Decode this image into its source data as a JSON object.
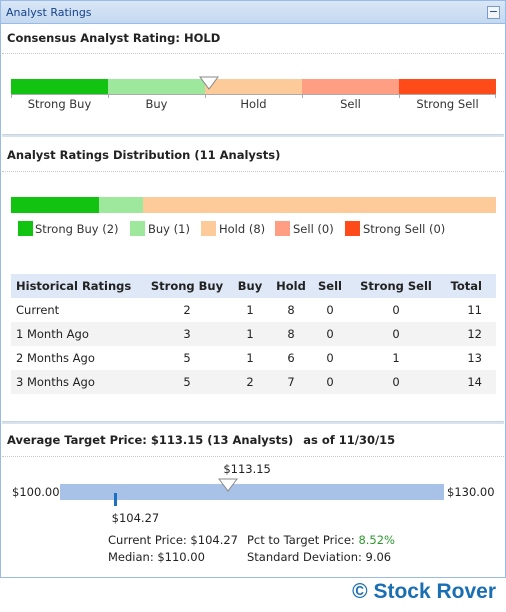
{
  "panel": {
    "title": "Analyst Ratings",
    "collapse_symbol": "−"
  },
  "consensus": {
    "label": "Consensus Analyst Rating:",
    "value": "HOLD",
    "scale": [
      "Strong Buy",
      "Buy",
      "Hold",
      "Sell",
      "Strong Sell"
    ],
    "marker_position": 0.409,
    "colors": [
      "#12c312",
      "#9de89d",
      "#fccb99",
      "#ff9e82",
      "#ff4a1a"
    ]
  },
  "distribution": {
    "title": "Analyst Ratings Distribution (11 Analysts)",
    "segments": [
      {
        "name": "Strong Buy",
        "count": 2,
        "color": "#12c312",
        "legend": "Strong Buy (2)"
      },
      {
        "name": "Buy",
        "count": 1,
        "color": "#9de89d",
        "legend": "Buy (1)"
      },
      {
        "name": "Hold",
        "count": 8,
        "color": "#fccb99",
        "legend": "Hold (8)"
      },
      {
        "name": "Sell",
        "count": 0,
        "color": "#ff9e82",
        "legend": "Sell (0)"
      },
      {
        "name": "Strong Sell",
        "count": 0,
        "color": "#ff4a1a",
        "legend": "Strong Sell (0)"
      }
    ]
  },
  "historical": {
    "headers": [
      "Historical Ratings",
      "Strong Buy",
      "Buy",
      "Hold",
      "Sell",
      "Strong Sell",
      "Total"
    ],
    "rows": [
      [
        "Current",
        "2",
        "1",
        "8",
        "0",
        "0",
        "11"
      ],
      [
        "1 Month Ago",
        "3",
        "1",
        "8",
        "0",
        "0",
        "12"
      ],
      [
        "2 Months Ago",
        "5",
        "1",
        "6",
        "0",
        "1",
        "13"
      ],
      [
        "3 Months Ago",
        "5",
        "2",
        "7",
        "0",
        "0",
        "14"
      ]
    ]
  },
  "target": {
    "title": "Average Target Price: $113.15 (13 Analysts)",
    "as_of": "as of 11/30/15",
    "target_label": "$113.15",
    "low_label": "$100.00",
    "high_label": "$130.00",
    "current_label": "$104.27",
    "low": 100.0,
    "high": 130.0,
    "target_value": 113.15,
    "current_value": 104.27,
    "current_price_text": "Current Price: $104.27",
    "pct_to_target_label": "Pct to Target Price:",
    "pct_to_target_value": "8.52%",
    "median_text": "Median: $110.00",
    "std_dev_text": "Standard Deviation: 9.06"
  },
  "brand": "© Stock Rover"
}
